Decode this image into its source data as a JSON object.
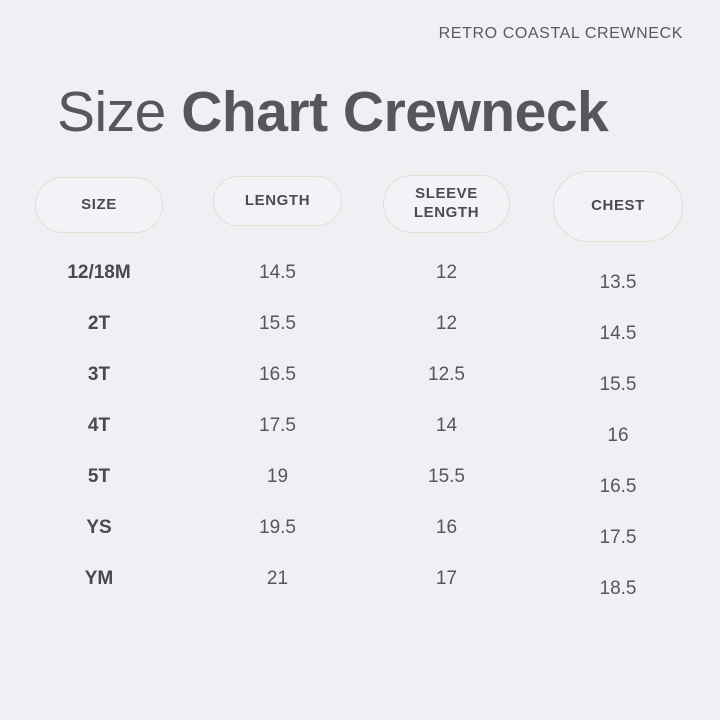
{
  "header": {
    "product_label": "RETRO COASTAL CREWNECK"
  },
  "title": {
    "light": "Size",
    "bold": "Chart Crewneck"
  },
  "columns": {
    "size": "SIZE",
    "length": "LENGTH",
    "sleeve_line1": "SLEEVE",
    "sleeve_line2": "LENGTH",
    "chest": "CHEST"
  },
  "rows": [
    {
      "size": "12/18M",
      "length": "14.5",
      "sleeve": "12",
      "chest": "13.5"
    },
    {
      "size": "2T",
      "length": "15.5",
      "sleeve": "12",
      "chest": "14.5"
    },
    {
      "size": "3T",
      "length": "16.5",
      "sleeve": "12.5",
      "chest": "15.5"
    },
    {
      "size": "4T",
      "length": "17.5",
      "sleeve": "14",
      "chest": "16"
    },
    {
      "size": "5T",
      "length": "19",
      "sleeve": "15.5",
      "chest": "16.5"
    },
    {
      "size": "YS",
      "length": "19.5",
      "sleeve": "16",
      "chest": "17.5"
    },
    {
      "size": "YM",
      "length": "21",
      "sleeve": "17",
      "chest": "18.5"
    }
  ],
  "chart_data": {
    "type": "table",
    "title": "Size Chart Crewneck",
    "subtitle": "RETRO COASTAL CREWNECK",
    "columns": [
      "SIZE",
      "LENGTH",
      "SLEEVE LENGTH",
      "CHEST"
    ],
    "rows": [
      [
        "12/18M",
        14.5,
        12,
        13.5
      ],
      [
        "2T",
        15.5,
        12,
        14.5
      ],
      [
        "3T",
        16.5,
        12.5,
        15.5
      ],
      [
        "4T",
        17.5,
        14,
        16
      ],
      [
        "5T",
        19,
        15.5,
        16.5
      ],
      [
        "YS",
        19.5,
        16,
        17.5
      ],
      [
        "YM",
        21,
        17,
        18.5
      ]
    ]
  },
  "colors": {
    "background": "#eff0f3",
    "title_text": "#56575c",
    "label_text": "#595a5f",
    "pill_border": "#e5ded1",
    "pill_bg": "#f2f3f6",
    "pill_text": "#4b4c52",
    "size_text": "#48494e",
    "value_text": "#56575c"
  }
}
